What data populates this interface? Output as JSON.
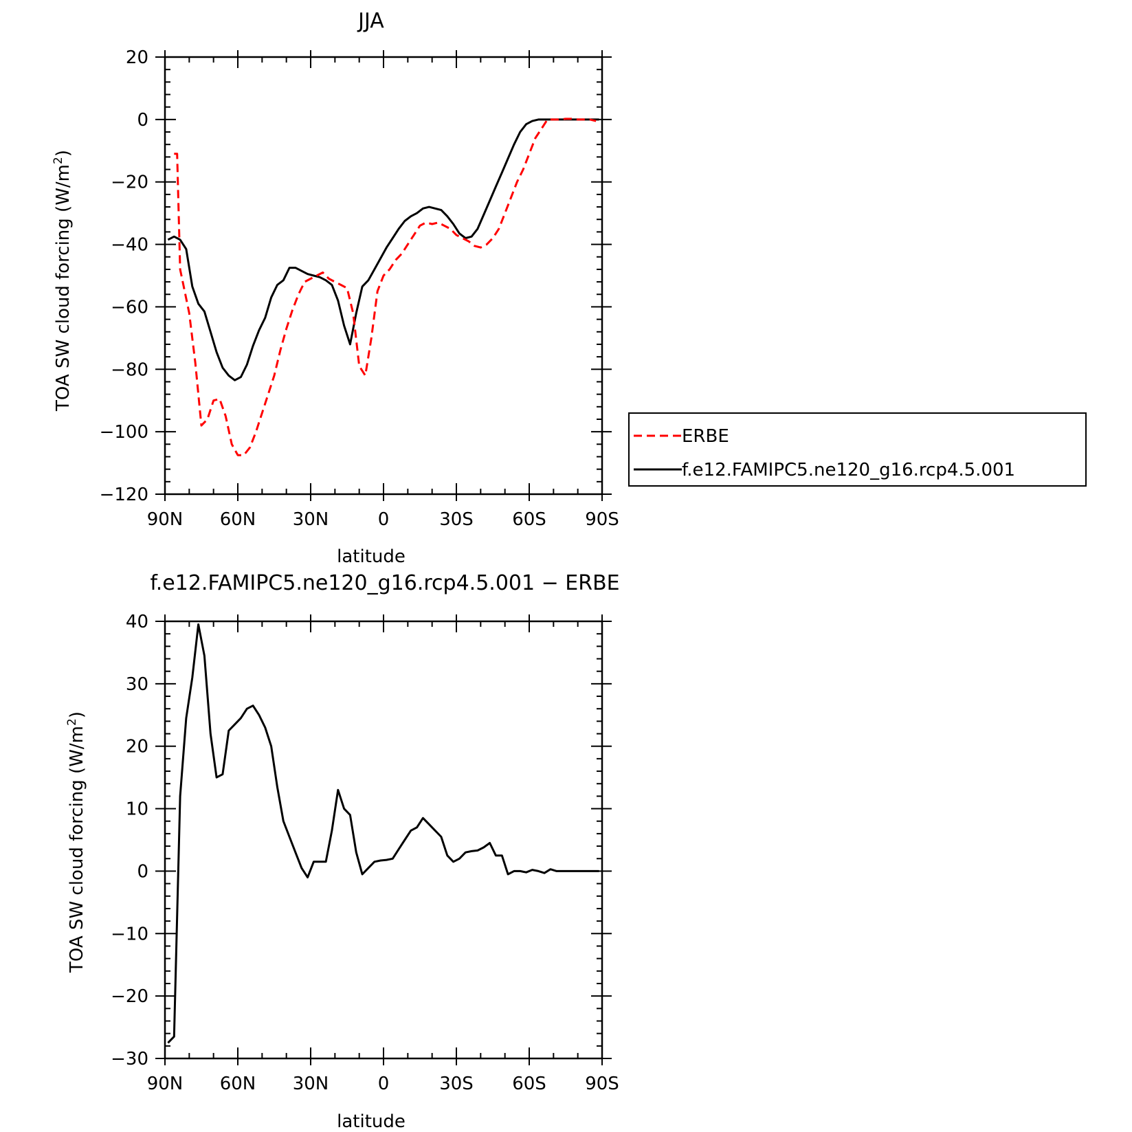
{
  "chart_data": [
    {
      "type": "line",
      "title": "JJA",
      "xlabel": "latitude",
      "ylabel": "TOA SW cloud forcing (W/m",
      "ylabel_sup": "2",
      "ylabel_end": ")",
      "xlim": [
        90,
        -90
      ],
      "ylim": [
        -120,
        20
      ],
      "xticks": [
        {
          "v": 90,
          "label": "90N"
        },
        {
          "v": 60,
          "label": "60N"
        },
        {
          "v": 30,
          "label": "30N"
        },
        {
          "v": 0,
          "label": "0"
        },
        {
          "v": -30,
          "label": "30S"
        },
        {
          "v": -60,
          "label": "60S"
        },
        {
          "v": -90,
          "label": "90S"
        }
      ],
      "yticks": [
        20,
        0,
        -20,
        -40,
        -60,
        -80,
        -100,
        -120
      ],
      "legend": "right",
      "series": [
        {
          "name": "ERBE",
          "color": "#ff0000",
          "dash": "dashed",
          "x": [
            86.25,
            85,
            83.75,
            80,
            77.5,
            75,
            72.5,
            70,
            67.5,
            65,
            62.5,
            60,
            57.5,
            55,
            52.5,
            50,
            47.5,
            45,
            42.5,
            40,
            37.5,
            35,
            32.5,
            30,
            27.5,
            25,
            22.5,
            20,
            17.5,
            15,
            12.5,
            10,
            7.5,
            5,
            2.5,
            0,
            -2.5,
            -5,
            -7.5,
            -10,
            -12.5,
            -15,
            -17.5,
            -20,
            -22.5,
            -25,
            -27.5,
            -30,
            -32.5,
            -35,
            -37.5,
            -40,
            -42.5,
            -45,
            -47.5,
            -50,
            -52.5,
            -55,
            -57.5,
            -60,
            -62.5,
            -65,
            -67.5,
            -70,
            -72.5,
            -75,
            -77.5,
            -80,
            -82.5,
            -85,
            -87.5
          ],
          "y": [
            -11,
            -11,
            -48,
            -62,
            -78,
            -98,
            -96,
            -90,
            -89.5,
            -95,
            -104,
            -107.5,
            -107.5,
            -105,
            -100,
            -94,
            -88,
            -82,
            -74,
            -67,
            -61,
            -56,
            -52,
            -51,
            -50,
            -49,
            -51,
            -52,
            -53,
            -54,
            -62,
            -79,
            -82,
            -70,
            -55,
            -50,
            -48,
            -45,
            -43,
            -40,
            -37,
            -34,
            -33,
            -33.5,
            -33,
            -34,
            -35,
            -37,
            -38,
            -39,
            -40.5,
            -41,
            -40,
            -38,
            -35,
            -30,
            -25,
            -20,
            -16,
            -11,
            -6,
            -3,
            0,
            0,
            0,
            0.2,
            0.2,
            0,
            0,
            0,
            -0.5
          ]
        },
        {
          "name": "f.e12.FAMIPC5.ne120_g16.rcp4.5.001",
          "color": "#000000",
          "dash": "solid",
          "x": [
            88.75,
            86.25,
            83.75,
            81.25,
            78.75,
            76.25,
            73.75,
            71.25,
            68.75,
            66.25,
            63.75,
            61.25,
            58.75,
            56.25,
            53.75,
            51.25,
            48.75,
            46.25,
            43.75,
            41.25,
            38.75,
            36.25,
            33.75,
            31.25,
            28.75,
            26.25,
            23.75,
            21.25,
            18.75,
            16.25,
            13.75,
            11.25,
            8.75,
            6.25,
            3.75,
            1.25,
            -1.25,
            -3.75,
            -6.25,
            -8.75,
            -11.25,
            -13.75,
            -16.25,
            -18.75,
            -21.25,
            -23.75,
            -26.25,
            -28.75,
            -31.25,
            -33.75,
            -36.25,
            -38.75,
            -41.25,
            -43.75,
            -46.25,
            -48.75,
            -51.25,
            -53.75,
            -56.25,
            -58.75,
            -61.25,
            -63.75,
            -66.25,
            -68.75,
            -71.25,
            -73.75,
            -76.25,
            -78.75,
            -81.25,
            -83.75,
            -86.25,
            -88.75
          ],
          "y": [
            -38.5,
            -37.5,
            -38.5,
            -41.5,
            -53.5,
            -59,
            -61.5,
            -68,
            -74.5,
            -79.5,
            -82,
            -83.5,
            -82.5,
            -78.5,
            -72.5,
            -67.5,
            -63.5,
            -57,
            -53,
            -51.5,
            -47.5,
            -47.5,
            -48.5,
            -49.5,
            -50,
            -50.5,
            -51.5,
            -53,
            -58,
            -66,
            -72,
            -62,
            -53.5,
            -51.5,
            -48,
            -44.5,
            -41,
            -38,
            -35,
            -32.5,
            -31,
            -30,
            -28.5,
            -28,
            -28.5,
            -29,
            -31,
            -33.5,
            -36.5,
            -38,
            -37.5,
            -35,
            -30.5,
            -26,
            -21.5,
            -17,
            -12.5,
            -8,
            -4,
            -1.5,
            -0.5,
            0,
            0,
            0,
            0,
            0,
            0,
            0,
            0,
            0,
            0,
            0
          ]
        }
      ]
    },
    {
      "type": "line",
      "title": "f.e12.FAMIPC5.ne120_g16.rcp4.5.001 − ERBE",
      "xlabel": "latitude",
      "ylabel": "TOA SW cloud forcing (W/m",
      "ylabel_sup": "2",
      "ylabel_end": ")",
      "xlim": [
        90,
        -90
      ],
      "ylim": [
        -30,
        40
      ],
      "xticks": [
        {
          "v": 90,
          "label": "90N"
        },
        {
          "v": 60,
          "label": "60N"
        },
        {
          "v": 30,
          "label": "30N"
        },
        {
          "v": 0,
          "label": "0"
        },
        {
          "v": -30,
          "label": "30S"
        },
        {
          "v": -60,
          "label": "60S"
        },
        {
          "v": -90,
          "label": "90S"
        }
      ],
      "yticks": [
        40,
        30,
        20,
        10,
        0,
        -10,
        -20,
        -30
      ],
      "legend": "none",
      "series": [
        {
          "color": "#000000",
          "dash": "solid",
          "x": [
            88.75,
            86.25,
            83.75,
            81.25,
            78.75,
            76.25,
            73.75,
            71.25,
            68.75,
            66.25,
            63.75,
            61.25,
            58.75,
            56.25,
            53.75,
            51.25,
            48.75,
            46.25,
            43.75,
            41.25,
            38.75,
            36.25,
            33.75,
            31.25,
            28.75,
            26.25,
            23.75,
            21.25,
            18.75,
            16.25,
            13.75,
            11.25,
            8.75,
            6.25,
            3.75,
            1.25,
            -1.25,
            -3.75,
            -6.25,
            -8.75,
            -11.25,
            -13.75,
            -16.25,
            -18.75,
            -21.25,
            -23.75,
            -26.25,
            -28.75,
            -31.25,
            -33.75,
            -36.25,
            -38.75,
            -41.25,
            -43.75,
            -46.25,
            -48.75,
            -51.25,
            -53.75,
            -56.25,
            -58.75,
            -61.25,
            -63.75,
            -66.25,
            -68.75,
            -71.25,
            -73.75,
            -76.25,
            -78.75,
            -81.25,
            -83.75,
            -86.25,
            -88.75
          ],
          "y": [
            -27.5,
            -26.5,
            12,
            24.5,
            31,
            39.5,
            34.5,
            22,
            15,
            15.5,
            22.5,
            23.5,
            24.5,
            26,
            26.5,
            25,
            23,
            20,
            13.5,
            8,
            5.5,
            3,
            0.5,
            -1,
            1.5,
            1.5,
            1.5,
            6.5,
            13,
            10,
            9,
            3,
            -0.5,
            0.5,
            1.5,
            1.7,
            1.8,
            2,
            3.5,
            5,
            6.5,
            7,
            8.5,
            7.5,
            6.5,
            5.5,
            2.5,
            1.5,
            2,
            3,
            3.2,
            3.3,
            3.8,
            4.5,
            2.5,
            2.5,
            -0.5,
            0,
            0,
            -0.2,
            0.2,
            0,
            -0.3,
            0.3,
            0,
            0,
            0,
            0,
            0,
            0,
            0,
            0
          ]
        }
      ]
    }
  ]
}
